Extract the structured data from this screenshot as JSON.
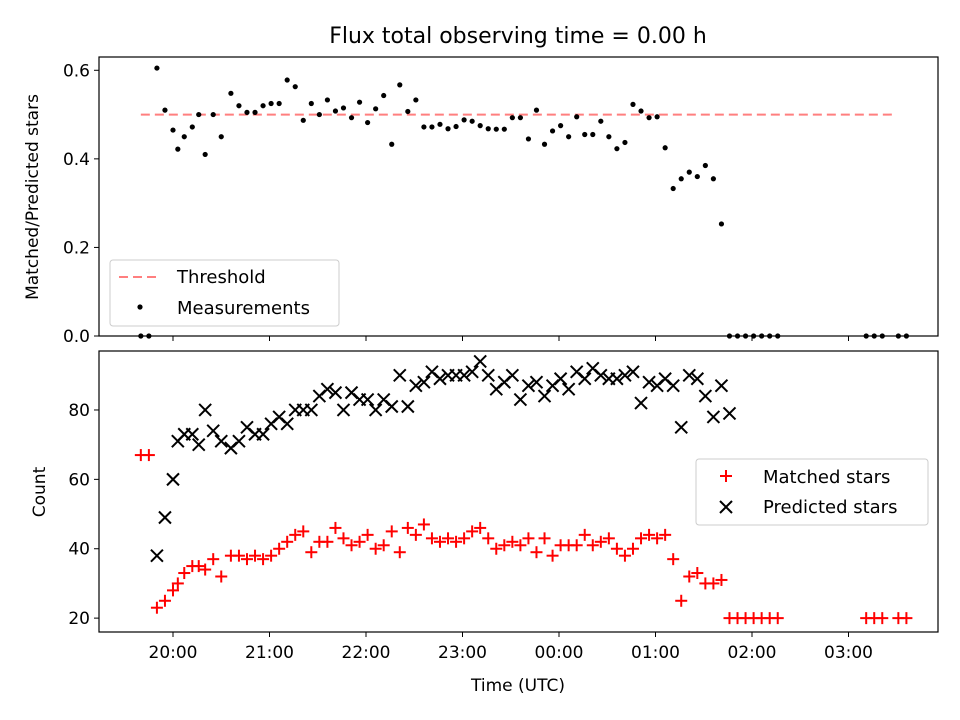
{
  "figure": {
    "title": "Flux total observing time = 0.00 h"
  },
  "colors": {
    "threshold": "#ff7f7f",
    "measurements": "#000000",
    "matched": "#ff0000",
    "predicted": "#000000"
  },
  "chart_data": [
    {
      "type": "scatter",
      "panel": "top",
      "title": "Flux total observing time = 0.00 h",
      "xlabel": "",
      "ylabel": "Matched/Predicted stars",
      "ylim": [
        0,
        0.63
      ],
      "yticks": [
        "0.0",
        "0.2",
        "0.4",
        "0.6"
      ],
      "x_ticks": [
        "20:00",
        "21:00",
        "22:00",
        "23:00",
        "00:00",
        "01:00",
        "02:00",
        "03:00"
      ],
      "legend_position": "lower left",
      "grid": false,
      "threshold": {
        "name": "Threshold",
        "value": 0.5,
        "x_range": [
          "19:40",
          "03:30"
        ]
      },
      "series": [
        {
          "name": "Measurements",
          "x": [
            "19:40",
            "19:45",
            "19:50",
            "19:55",
            "20:00",
            "20:03",
            "20:07",
            "20:12",
            "20:16",
            "20:20",
            "20:25",
            "20:30",
            "20:36",
            "20:41",
            "20:46",
            "20:51",
            "20:56",
            "21:01",
            "21:06",
            "21:11",
            "21:16",
            "21:21",
            "21:26",
            "21:31",
            "21:36",
            "21:41",
            "21:46",
            "21:51",
            "21:56",
            "22:01",
            "22:06",
            "22:11",
            "22:16",
            "22:21",
            "22:26",
            "22:31",
            "22:36",
            "22:41",
            "22:46",
            "22:51",
            "22:56",
            "23:01",
            "23:06",
            "23:11",
            "23:16",
            "23:21",
            "23:26",
            "23:31",
            "23:36",
            "23:41",
            "23:46",
            "23:51",
            "23:56",
            "00:01",
            "00:06",
            "00:11",
            "00:16",
            "00:21",
            "00:26",
            "00:31",
            "00:36",
            "00:41",
            "00:46",
            "00:51",
            "00:56",
            "01:01",
            "01:06",
            "01:11",
            "01:16",
            "01:21",
            "01:26",
            "01:31",
            "01:36",
            "01:41",
            "01:46",
            "01:51",
            "01:56",
            "02:01",
            "02:06",
            "02:11",
            "02:16",
            "03:11",
            "03:16",
            "03:21",
            "03:31",
            "03:36"
          ],
          "y": [
            0,
            0,
            0.605,
            0.51,
            0.465,
            0.422,
            0.45,
            0.472,
            0.5,
            0.41,
            0.5,
            0.45,
            0.548,
            0.52,
            0.505,
            0.505,
            0.52,
            0.525,
            0.525,
            0.578,
            0.563,
            0.487,
            0.525,
            0.5,
            0.533,
            0.508,
            0.515,
            0.493,
            0.528,
            0.482,
            0.513,
            0.543,
            0.433,
            0.567,
            0.507,
            0.533,
            0.472,
            0.472,
            0.478,
            0.468,
            0.473,
            0.488,
            0.485,
            0.475,
            0.468,
            0.467,
            0.467,
            0.493,
            0.493,
            0.445,
            0.51,
            0.433,
            0.463,
            0.475,
            0.45,
            0.495,
            0.455,
            0.455,
            0.485,
            0.45,
            0.423,
            0.437,
            0.523,
            0.508,
            0.493,
            0.495,
            0.425,
            0.333,
            0.355,
            0.37,
            0.36,
            0.385,
            0.355,
            0.253,
            0,
            0,
            0,
            0,
            0,
            0,
            0,
            0,
            0,
            0,
            0,
            0
          ]
        }
      ]
    },
    {
      "type": "scatter",
      "panel": "bottom",
      "xlabel": "Time (UTC)",
      "ylabel": "Count",
      "ylim": [
        16,
        97
      ],
      "yticks": [
        "20",
        "40",
        "60",
        "80"
      ],
      "x_ticks": [
        "20:00",
        "21:00",
        "22:00",
        "23:00",
        "00:00",
        "01:00",
        "02:00",
        "03:00"
      ],
      "legend_position": "center right",
      "grid": false,
      "series": [
        {
          "name": "Matched stars",
          "marker": "+",
          "x": [
            "19:40",
            "19:45",
            "19:50",
            "19:55",
            "20:00",
            "20:03",
            "20:07",
            "20:12",
            "20:16",
            "20:20",
            "20:25",
            "20:30",
            "20:36",
            "20:41",
            "20:46",
            "20:51",
            "20:56",
            "21:01",
            "21:06",
            "21:11",
            "21:16",
            "21:21",
            "21:26",
            "21:31",
            "21:36",
            "21:41",
            "21:46",
            "21:51",
            "21:56",
            "22:01",
            "22:06",
            "22:11",
            "22:16",
            "22:21",
            "22:26",
            "22:31",
            "22:36",
            "22:41",
            "22:46",
            "22:51",
            "22:56",
            "23:01",
            "23:06",
            "23:11",
            "23:16",
            "23:21",
            "23:26",
            "23:31",
            "23:36",
            "23:41",
            "23:46",
            "23:51",
            "23:56",
            "00:01",
            "00:06",
            "00:11",
            "00:16",
            "00:21",
            "00:26",
            "00:31",
            "00:36",
            "00:41",
            "00:46",
            "00:51",
            "00:56",
            "01:01",
            "01:06",
            "01:11",
            "01:16",
            "01:21",
            "01:26",
            "01:31",
            "01:36",
            "01:41",
            "01:46",
            "01:51",
            "01:56",
            "02:01",
            "02:06",
            "02:11",
            "02:16",
            "03:11",
            "03:16",
            "03:21",
            "03:31",
            "03:36"
          ],
          "y": [
            67,
            67,
            23,
            25,
            28,
            30,
            33,
            35,
            35,
            34,
            37,
            32,
            38,
            38,
            37,
            38,
            37,
            38,
            40,
            42,
            44,
            45,
            39,
            42,
            42,
            46,
            43,
            41,
            42,
            44,
            40,
            41,
            45,
            39,
            46,
            44,
            47,
            43,
            42,
            43,
            42,
            43,
            45,
            46,
            43,
            40,
            41,
            42,
            41,
            43,
            39,
            43,
            38,
            41,
            41,
            41,
            44,
            41,
            42,
            43,
            40,
            38,
            40,
            43,
            44,
            43,
            44,
            37,
            25,
            32,
            33,
            30,
            30,
            31,
            20,
            20,
            20,
            20,
            20,
            20,
            20,
            20,
            20,
            20,
            20,
            20
          ]
        },
        {
          "name": "Predicted stars",
          "marker": "x",
          "x": [
            "19:50",
            "19:55",
            "20:00",
            "20:03",
            "20:07",
            "20:12",
            "20:16",
            "20:20",
            "20:25",
            "20:30",
            "20:36",
            "20:41",
            "20:46",
            "20:51",
            "20:56",
            "21:01",
            "21:06",
            "21:11",
            "21:16",
            "21:21",
            "21:26",
            "21:31",
            "21:36",
            "21:41",
            "21:46",
            "21:51",
            "21:56",
            "22:01",
            "22:06",
            "22:11",
            "22:16",
            "22:21",
            "22:26",
            "22:31",
            "22:36",
            "22:41",
            "22:46",
            "22:51",
            "22:56",
            "23:01",
            "23:06",
            "23:11",
            "23:16",
            "23:21",
            "23:26",
            "23:31",
            "23:36",
            "23:41",
            "23:46",
            "23:51",
            "23:56",
            "00:01",
            "00:06",
            "00:11",
            "00:16",
            "00:21",
            "00:26",
            "00:31",
            "00:36",
            "00:41",
            "00:46",
            "00:51",
            "00:56",
            "01:01",
            "01:06",
            "01:11",
            "01:16",
            "01:21",
            "01:26",
            "01:31",
            "01:36",
            "01:41",
            "01:46"
          ],
          "y": [
            38,
            49,
            60,
            71,
            73,
            73,
            70,
            80,
            74,
            71,
            69,
            71,
            75,
            73,
            73,
            76,
            78,
            76,
            80,
            80,
            80,
            84,
            86,
            85,
            80,
            85,
            83,
            83,
            80,
            83,
            81,
            90,
            81,
            87,
            88,
            91,
            89,
            90,
            90,
            90,
            91,
            94,
            90,
            86,
            88,
            90,
            83,
            87,
            88,
            84,
            87,
            89,
            86,
            91,
            89,
            92,
            90,
            89,
            89,
            90,
            91,
            82,
            88,
            87,
            89,
            87,
            75,
            90,
            89,
            84,
            78,
            87,
            79
          ]
        }
      ]
    }
  ]
}
